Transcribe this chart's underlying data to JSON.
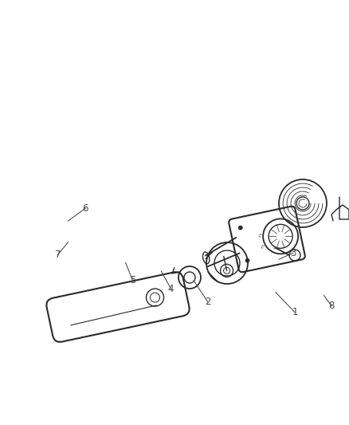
{
  "background_color": "#ffffff",
  "figsize": [
    4.38,
    5.33
  ],
  "dpi": 100,
  "line_color": "#2a2a2a",
  "label_fontsize": 8.5,
  "line_width": 1.0,
  "labels_info": [
    [
      1,
      0.845,
      0.735,
      0.79,
      0.688
    ],
    [
      2,
      0.595,
      0.71,
      0.555,
      0.66
    ],
    [
      3,
      0.84,
      0.595,
      0.8,
      0.61
    ],
    [
      4,
      0.49,
      0.68,
      0.462,
      0.638
    ],
    [
      5,
      0.38,
      0.66,
      0.36,
      0.618
    ],
    [
      6,
      0.245,
      0.49,
      0.195,
      0.52
    ],
    [
      7,
      0.165,
      0.6,
      0.195,
      0.57
    ],
    [
      8,
      0.95,
      0.72,
      0.928,
      0.695
    ]
  ]
}
